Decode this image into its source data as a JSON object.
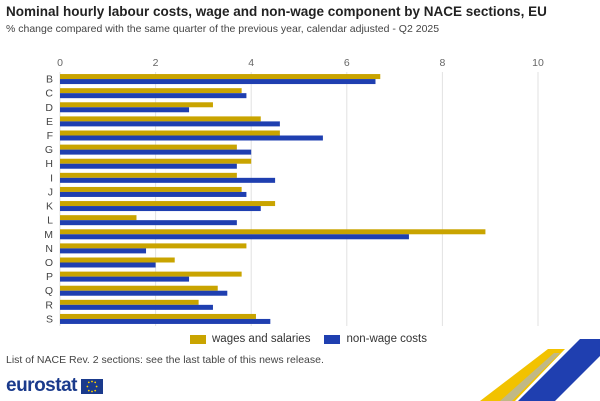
{
  "header": {
    "title": "Nominal hourly labour costs, wage and non-wage component by NACE sections, EU",
    "subtitle": "% change compared with the same quarter of the previous year, calendar adjusted - Q2 2025"
  },
  "footnote": "List of NACE Rev. 2 sections: see the last table of this news release.",
  "branding": {
    "logo_text": "eurostat",
    "logo_icon": "eu-flag-icon"
  },
  "colors": {
    "wages": "#c9a400",
    "nonwage": "#1f3fb0",
    "grid": "#e2e2e2"
  },
  "chart_data": {
    "type": "bar",
    "orientation": "horizontal",
    "categories": [
      "B",
      "C",
      "D",
      "E",
      "F",
      "G",
      "H",
      "I",
      "J",
      "K",
      "L",
      "M",
      "N",
      "O",
      "P",
      "Q",
      "R",
      "S"
    ],
    "series": [
      {
        "name": "wages and salaries",
        "values": [
          6.7,
          3.8,
          3.2,
          4.2,
          4.6,
          3.7,
          4.0,
          3.7,
          3.8,
          4.5,
          1.6,
          8.9,
          3.9,
          2.4,
          3.8,
          3.3,
          2.9,
          4.1
        ]
      },
      {
        "name": "non-wage costs",
        "values": [
          6.6,
          3.9,
          2.7,
          4.6,
          5.5,
          4.0,
          3.7,
          4.5,
          3.9,
          4.2,
          3.7,
          7.3,
          1.8,
          2.0,
          2.7,
          3.5,
          3.2,
          4.4
        ]
      }
    ],
    "xlim": [
      0,
      10
    ],
    "xticks": [
      0,
      2,
      4,
      6,
      8,
      10
    ],
    "grid": true,
    "legend_position": "bottom"
  }
}
